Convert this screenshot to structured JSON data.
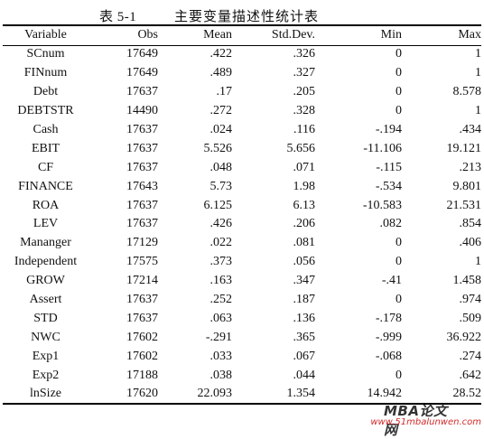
{
  "caption": {
    "number": "表 5-1",
    "title": "主要变量描述性统计表"
  },
  "table": {
    "headers": [
      "Variable",
      "Obs",
      "Mean",
      "Std.Dev.",
      "Min",
      "Max"
    ],
    "rows": [
      [
        "SCnum",
        "17649",
        ".422",
        ".326",
        "0",
        "1"
      ],
      [
        "FINnum",
        "17649",
        ".489",
        ".327",
        "0",
        "1"
      ],
      [
        "Debt",
        "17637",
        ".17",
        ".205",
        "0",
        "8.578"
      ],
      [
        "DEBTSTR",
        "14490",
        ".272",
        ".328",
        "0",
        "1"
      ],
      [
        "Cash",
        "17637",
        ".024",
        ".116",
        "-.194",
        ".434"
      ],
      [
        "EBIT",
        "17637",
        "5.526",
        "5.656",
        "-11.106",
        "19.121"
      ],
      [
        "CF",
        "17637",
        ".048",
        ".071",
        "-.115",
        ".213"
      ],
      [
        "FINANCE",
        "17643",
        "5.73",
        "1.98",
        "-.534",
        "9.801"
      ],
      [
        "ROA",
        "17637",
        "6.125",
        "6.13",
        "-10.583",
        "21.531"
      ],
      [
        "LEV",
        "17637",
        ".426",
        ".206",
        ".082",
        ".854"
      ],
      [
        "Mananger",
        "17129",
        ".022",
        ".081",
        "0",
        ".406"
      ],
      [
        "Independent",
        "17575",
        ".373",
        ".056",
        "0",
        "1"
      ],
      [
        "GROW",
        "17214",
        ".163",
        ".347",
        "-.41",
        "1.458"
      ],
      [
        "Assert",
        "17637",
        ".252",
        ".187",
        "0",
        ".974"
      ],
      [
        "STD",
        "17637",
        ".063",
        ".136",
        "-.178",
        ".509"
      ],
      [
        "NWC",
        "17602",
        "-.291",
        ".365",
        "-.999",
        "36.922"
      ],
      [
        "Exp1",
        "17602",
        ".033",
        ".067",
        "-.068",
        ".274"
      ],
      [
        "Exp2",
        "17188",
        ".038",
        ".044",
        "0",
        ".642"
      ],
      [
        "lnSize",
        "17620",
        "22.093",
        "1.354",
        "14.942",
        "28.52"
      ]
    ]
  },
  "watermark": {
    "title": "MBA论文网",
    "url": "www.51mbalunwen.com"
  }
}
